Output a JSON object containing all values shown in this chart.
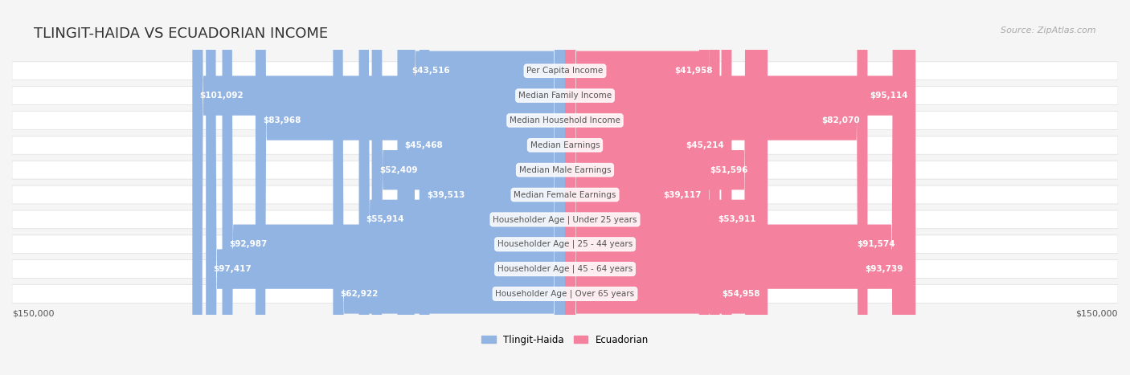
{
  "title": "TLINGIT-HAIDA VS ECUADORIAN INCOME",
  "source": "Source: ZipAtlas.com",
  "categories": [
    "Per Capita Income",
    "Median Family Income",
    "Median Household Income",
    "Median Earnings",
    "Median Male Earnings",
    "Median Female Earnings",
    "Householder Age | Under 25 years",
    "Householder Age | 25 - 44 years",
    "Householder Age | 45 - 64 years",
    "Householder Age | Over 65 years"
  ],
  "tlingit_values": [
    43516,
    101092,
    83968,
    45468,
    52409,
    39513,
    55914,
    92987,
    97417,
    62922
  ],
  "ecuadorian_values": [
    41958,
    95114,
    82070,
    45214,
    51596,
    39117,
    53911,
    91574,
    93739,
    54958
  ],
  "tlingit_labels": [
    "$43,516",
    "$101,092",
    "$83,968",
    "$45,468",
    "$52,409",
    "$39,513",
    "$55,914",
    "$92,987",
    "$97,417",
    "$62,922"
  ],
  "ecuadorian_labels": [
    "$41,958",
    "$95,114",
    "$82,070",
    "$45,214",
    "$51,596",
    "$39,117",
    "$53,911",
    "$91,574",
    "$93,739",
    "$54,958"
  ],
  "tlingit_color": "#92b4e3",
  "ecuadorian_color": "#f4829e",
  "tlingit_text_color_inside": "#ffffff",
  "tlingit_text_color_outside": "#888888",
  "ecuadorian_text_color_inside": "#ffffff",
  "ecuadorian_text_color_outside": "#888888",
  "label_color": "#555555",
  "max_value": 150000,
  "background_color": "#f5f5f5",
  "row_bg_color": "#ffffff",
  "legend_tlingit": "Tlingit-Haida",
  "legend_ecuadorian": "Ecuadorian",
  "inside_threshold": 15000
}
